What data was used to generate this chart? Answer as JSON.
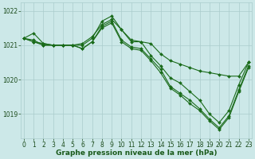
{
  "lines": [
    {
      "x": [
        0,
        1,
        2,
        3,
        4,
        5,
        6,
        7,
        8,
        9,
        10,
        11,
        12,
        13,
        14,
        15,
        16,
        17,
        18,
        19,
        20,
        21,
        22,
        23
      ],
      "y": [
        1021.2,
        1021.35,
        1021.05,
        1021.0,
        1021.0,
        1021.0,
        1021.05,
        1021.25,
        1021.6,
        1021.75,
        1021.45,
        1021.15,
        1021.1,
        1021.05,
        1020.75,
        1020.55,
        1020.45,
        1020.35,
        1020.25,
        1020.2,
        1020.15,
        1020.1,
        1020.1,
        1020.5
      ]
    },
    {
      "x": [
        0,
        1,
        2,
        3,
        4,
        5,
        6,
        7,
        8,
        9,
        10,
        11,
        12,
        13,
        14,
        15,
        16,
        17,
        18,
        19,
        20,
        21,
        22,
        23
      ],
      "y": [
        1021.2,
        1021.15,
        1021.0,
        1021.0,
        1021.0,
        1021.0,
        1020.9,
        1021.1,
        1021.55,
        1021.7,
        1021.15,
        1020.95,
        1020.9,
        1020.6,
        1020.3,
        1019.8,
        1019.6,
        1019.4,
        1019.15,
        1018.85,
        1018.6,
        1018.95,
        1019.7,
        1020.4
      ]
    },
    {
      "x": [
        0,
        1,
        2,
        3,
        4,
        5,
        6,
        7,
        8,
        9,
        10,
        11,
        12,
        13,
        14,
        15,
        16,
        17,
        18,
        19,
        20,
        21,
        22,
        23
      ],
      "y": [
        1021.2,
        1021.1,
        1021.0,
        1021.0,
        1021.0,
        1021.0,
        1020.9,
        1021.1,
        1021.5,
        1021.65,
        1021.1,
        1020.9,
        1020.85,
        1020.55,
        1020.2,
        1019.75,
        1019.55,
        1019.3,
        1019.1,
        1018.8,
        1018.55,
        1018.9,
        1019.65,
        1020.35
      ]
    },
    {
      "x": [
        0,
        1,
        2,
        3,
        4,
        5,
        6,
        7,
        8,
        9,
        10,
        11,
        12,
        13,
        14,
        15,
        16,
        17,
        18,
        19,
        20,
        21,
        22,
        23
      ],
      "y": [
        1021.2,
        1021.1,
        1021.05,
        1021.0,
        1021.0,
        1021.0,
        1021.0,
        1021.2,
        1021.7,
        1021.85,
        1021.45,
        1021.1,
        1021.1,
        1020.7,
        1020.4,
        1020.05,
        1019.9,
        1019.65,
        1019.4,
        1019.0,
        1018.75,
        1019.1,
        1019.85,
        1020.5
      ]
    }
  ],
  "line_color": "#1a6b1a",
  "marker": "D",
  "markersize": 2.0,
  "linewidth": 0.8,
  "bg_color": "#cce8e8",
  "grid_color": "#aacccc",
  "tick_color": "#1a4a1a",
  "label_color": "#1a5a1a",
  "xlabel": "Graphe pression niveau de la mer (hPa)",
  "ylim": [
    1018.3,
    1022.25
  ],
  "xlim": [
    -0.3,
    23.3
  ],
  "yticks": [
    1019,
    1020,
    1021,
    1022
  ],
  "xticks": [
    0,
    1,
    2,
    3,
    4,
    5,
    6,
    7,
    8,
    9,
    10,
    11,
    12,
    13,
    14,
    15,
    16,
    17,
    18,
    19,
    20,
    21,
    22,
    23
  ],
  "xlabel_fontsize": 6.5,
  "tick_fontsize": 5.5
}
